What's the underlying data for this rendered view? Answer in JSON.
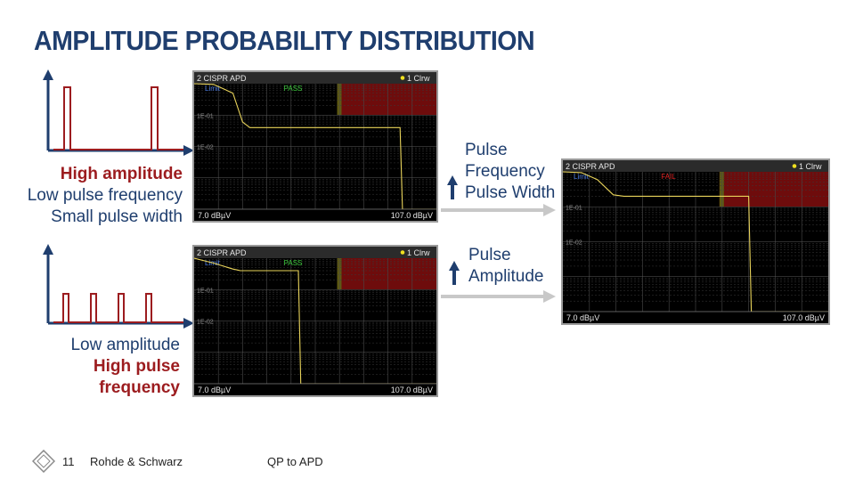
{
  "title": "AMPLITUDE PROBABILITY DISTRIBUTION",
  "colors": {
    "title": "#1f3e6e",
    "accent_red": "#9c1c1f",
    "trace": "#e8d35a",
    "fail_zone": "#6e0c0c",
    "limit_bar": "#5e5a12"
  },
  "top_desc": {
    "line1": "High amplitude",
    "line2": "Low pulse frequency",
    "line3": "Small pulse width"
  },
  "bottom_desc": {
    "line1": "Low amplitude",
    "line2": "High pulse",
    "line3": "frequency"
  },
  "note_top": {
    "line1": "Pulse",
    "line2": "Frequency",
    "line3": "Pulse Width"
  },
  "note_bottom": {
    "line1": "Pulse",
    "line2": "Amplitude"
  },
  "footer": {
    "page": "11",
    "company": "Rohde & Schwarz",
    "topic": "QP to APD"
  },
  "scope_text": {
    "header": "2 CISPR APD",
    "trace_label": "1 Clrw",
    "limit": "Limit",
    "ytick1": "1E-01",
    "ytick2": "1E-02",
    "xmin": "7.0 dBµV",
    "xmax": "107.0 dBµV"
  },
  "chart_data": [
    {
      "type": "line",
      "title": "2 CISPR APD",
      "status": "PASS",
      "xlim": [
        7.0,
        107.0
      ],
      "y_scale": "log",
      "yticks": [
        "1E-01",
        "1E-02"
      ],
      "limit_from_x": 66,
      "series": [
        {
          "name": "1 Clrw",
          "x": [
            7,
            15,
            23,
            27,
            30,
            47,
            92,
            93,
            107
          ],
          "y": [
            1.0,
            0.95,
            0.5,
            0.06,
            0.04,
            0.04,
            0.04,
            0.0001,
            0.0001
          ]
        }
      ]
    },
    {
      "type": "line",
      "title": "2 CISPR APD",
      "status": "PASS",
      "xlim": [
        7.0,
        107.0
      ],
      "y_scale": "log",
      "yticks": [
        "1E-01",
        "1E-02"
      ],
      "limit_from_x": 66,
      "series": [
        {
          "name": "1 Clrw",
          "x": [
            7,
            15,
            23,
            25,
            26,
            50,
            51,
            107
          ],
          "y": [
            1.0,
            0.7,
            0.45,
            0.42,
            0.4,
            0.4,
            0.0001,
            0.0001
          ]
        }
      ]
    },
    {
      "type": "line",
      "title": "2 CISPR APD",
      "status": "FAIL",
      "xlim": [
        7.0,
        107.0
      ],
      "y_scale": "log",
      "yticks": [
        "1E-01",
        "1E-02"
      ],
      "limit_from_x": 66,
      "series": [
        {
          "name": "1 Clrw",
          "x": [
            7,
            14,
            20,
            26,
            30,
            77,
            78,
            107
          ],
          "y": [
            1.0,
            0.95,
            0.6,
            0.22,
            0.2,
            0.2,
            0.0001,
            0.0001
          ]
        }
      ]
    }
  ]
}
